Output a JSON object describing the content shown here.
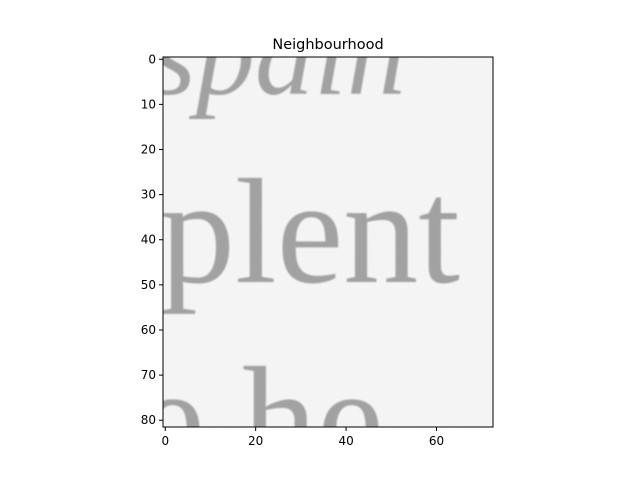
{
  "figure": {
    "title": "Neighbourhood",
    "image_description_colors": {
      "paper": "#ebebeb",
      "ink": "#1c1c1c"
    },
    "image_extent": {
      "x_min": 0,
      "x_max": 72,
      "y_min": 0,
      "y_max": 81
    },
    "x_ticks": [
      0,
      20,
      40,
      60
    ],
    "y_ticks": [
      0,
      10,
      20,
      30,
      40,
      50,
      60,
      70,
      80
    ],
    "image_text_fragments": [
      "spain",
      "plent",
      "e he"
    ]
  }
}
